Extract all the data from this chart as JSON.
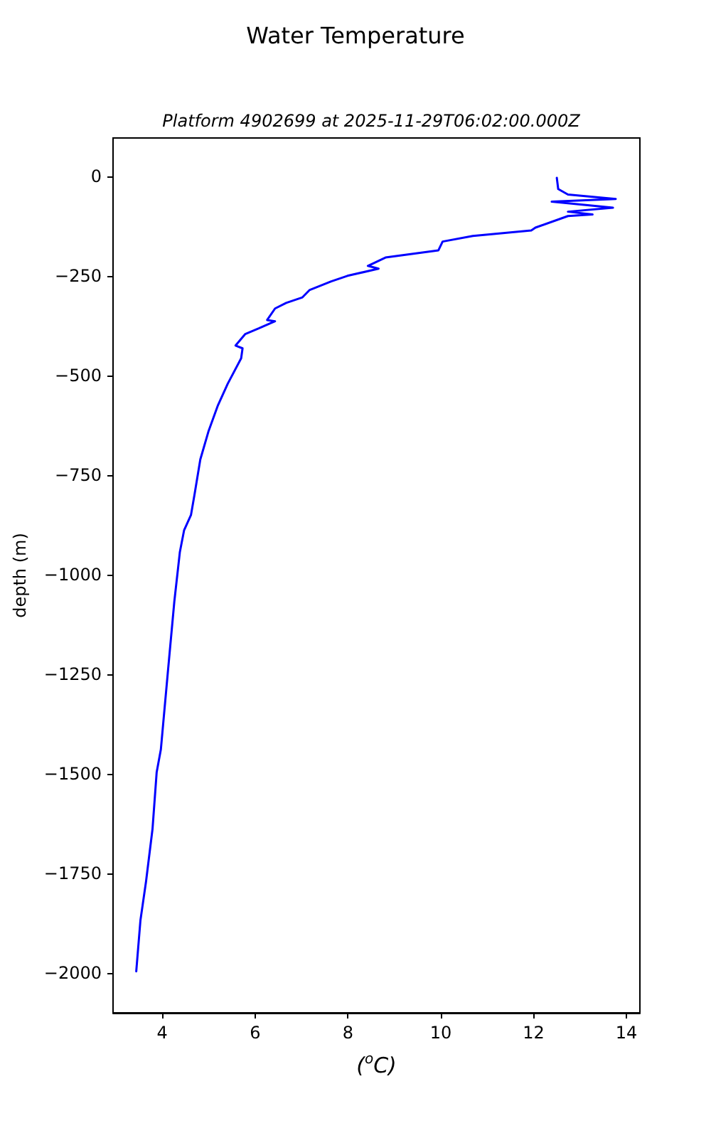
{
  "chart_data": {
    "type": "line",
    "title": "Water Temperature",
    "subtitle": "Platform 4902699 at 2025-11-29T06:02:00.000Z",
    "xlabel": "($^{o}$C)",
    "ylabel": "depth (m)",
    "xlim": [
      2.94,
      14.29
    ],
    "ylim": [
      -2100,
      96
    ],
    "xticks": [
      4,
      6,
      8,
      10,
      12,
      14
    ],
    "yticks": [
      0,
      -250,
      -500,
      -750,
      -1000,
      -1250,
      -1500,
      -1750,
      -2000
    ],
    "grid": false,
    "marker": "none",
    "line_style": "solid",
    "series": [
      {
        "color": "#0000ff",
        "x": [
          12.5,
          12.53,
          12.74,
          13.77,
          12.39,
          13.71,
          12.74,
          13.27,
          12.74,
          12.04,
          11.95,
          10.69,
          10.04,
          9.95,
          8.81,
          8.43,
          8.66,
          7.99,
          7.64,
          7.17,
          7.02,
          6.67,
          6.43,
          6.26,
          6.43,
          6.08,
          5.79,
          5.58,
          5.73,
          5.7,
          5.41,
          5.2,
          5.0,
          4.82,
          4.7,
          4.62,
          4.47,
          4.38,
          4.26,
          4.12,
          3.97,
          3.88,
          3.79,
          3.65,
          3.53,
          3.44
        ],
        "values": [
          -4,
          -32,
          -46,
          -57,
          -64,
          -79,
          -89,
          -96,
          -100,
          -129,
          -136,
          -150,
          -164,
          -186,
          -204,
          -225,
          -232,
          -250,
          -264,
          -286,
          -304,
          -318,
          -332,
          -361,
          -364,
          -382,
          -396,
          -425,
          -432,
          -457,
          -521,
          -575,
          -639,
          -711,
          -796,
          -850,
          -889,
          -943,
          -1068,
          -1246,
          -1439,
          -1496,
          -1639,
          -1771,
          -1868,
          -1996
        ]
      }
    ]
  }
}
